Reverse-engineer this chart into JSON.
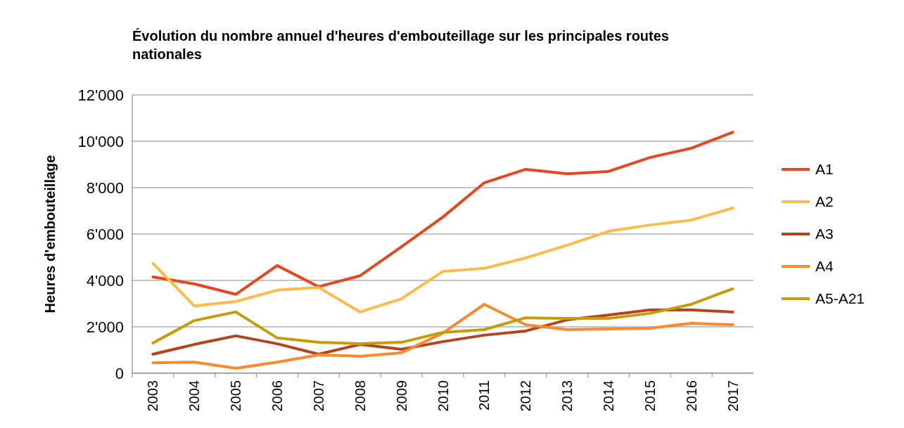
{
  "chart_data": {
    "type": "line",
    "title": "Évolution du nombre annuel d'heures d'embouteillage sur les principales routes nationales",
    "ylabel": "Heures d'embouteillage",
    "categories": [
      "2003",
      "2004",
      "2005",
      "2006",
      "2007",
      "2008",
      "2009",
      "2010",
      "2011",
      "2012",
      "2013",
      "2014",
      "2015",
      "2016",
      "2017"
    ],
    "series": [
      {
        "name": "A1",
        "color": "#e8471e",
        "values": [
          4150,
          3850,
          3400,
          4640,
          3730,
          4200,
          5450,
          6730,
          8210,
          8790,
          8600,
          8700,
          9300,
          9700,
          10390
        ]
      },
      {
        "name": "A2",
        "color": "#fdbb4a",
        "values": [
          4730,
          2900,
          3090,
          3580,
          3700,
          2640,
          3210,
          4390,
          4520,
          4970,
          5520,
          6120,
          6390,
          6600,
          7120
        ]
      },
      {
        "name": "A3",
        "color": "#b5441e",
        "values": [
          820,
          1240,
          1610,
          1270,
          820,
          1240,
          1030,
          1360,
          1640,
          1820,
          2300,
          2510,
          2730,
          2730,
          2640
        ]
      },
      {
        "name": "A4",
        "color": "#fb8a2c",
        "values": [
          450,
          480,
          210,
          480,
          790,
          730,
          880,
          1730,
          2970,
          2090,
          1880,
          1910,
          1940,
          2150,
          2090
        ]
      },
      {
        "name": "A5-A21",
        "color": "#c69c0a",
        "values": [
          1300,
          2270,
          2640,
          1520,
          1330,
          1270,
          1330,
          1760,
          1880,
          2390,
          2360,
          2360,
          2580,
          2970,
          3640
        ]
      }
    ],
    "ylim": [
      0,
      12000
    ],
    "yticks": [
      0,
      {
        "value": 2000,
        "label": "2'000"
      },
      {
        "value": 4000,
        "label": "4'000"
      },
      {
        "value": 6000,
        "label": "6'000"
      },
      {
        "value": 8000,
        "label": "8'000"
      },
      {
        "value": 10000,
        "label": "10'000"
      },
      {
        "value": 12000,
        "label": "12'000"
      }
    ],
    "grid": "y",
    "legend": "right",
    "marker": "none",
    "line_style": "solid"
  }
}
